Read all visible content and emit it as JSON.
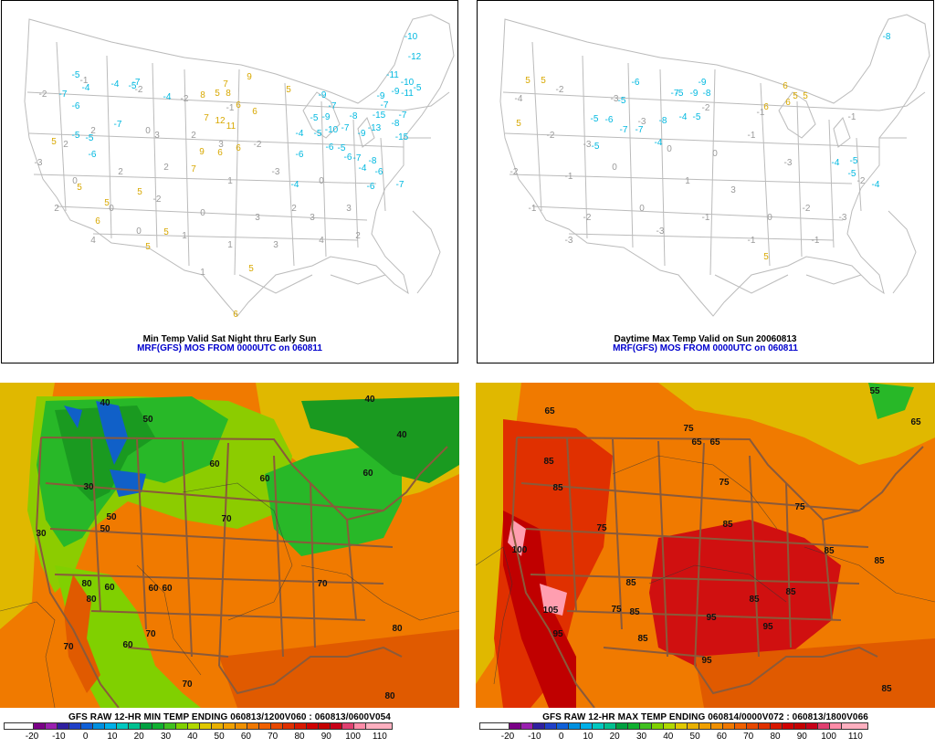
{
  "panels": {
    "min_temp": {
      "title": "Min Temp Valid Sat Night thru Early Sun",
      "subtitle": "MRF(GFS) MOS FROM 0000UTC on 060811"
    },
    "max_temp": {
      "title": "Daytime Max Temp Valid on Sun 20060813",
      "subtitle": "MRF(GFS) MOS FROM 0000UTC on 060811"
    },
    "gfs_min": {
      "title": "GFS RAW 12-HR MIN TEMP ENDING 060813/1200V060 : 060813/0600V054"
    },
    "gfs_max": {
      "title": "GFS RAW 12-HR MAX TEMP ENDING 060814/0000V072 : 060813/1800V066"
    }
  },
  "colorbar": {
    "ticks": [
      "-20",
      "-10",
      "0",
      "10",
      "20",
      "30",
      "40",
      "50",
      "60",
      "70",
      "80",
      "90",
      "100",
      "110"
    ],
    "colors": [
      "#ffffff",
      "#7a0087",
      "#6a00b0",
      "#0020c0",
      "#0060d8",
      "#00a0e0",
      "#00c0b0",
      "#00a040",
      "#20c020",
      "#80d000",
      "#e0c000",
      "#f09000",
      "#f06000",
      "#e03000",
      "#c00000",
      "#ff9eb0"
    ]
  },
  "contour_labels_min": [
    "30",
    "40",
    "40",
    "40",
    "50",
    "50",
    "60",
    "60",
    "60",
    "60",
    "60",
    "60",
    "70",
    "70",
    "70",
    "70",
    "80",
    "80",
    "80",
    "80",
    "60",
    "50",
    "30",
    "70"
  ],
  "contour_labels_max": [
    "55",
    "65",
    "65",
    "65",
    "65",
    "75",
    "75",
    "75",
    "75",
    "75",
    "85",
    "85",
    "85",
    "85",
    "85",
    "85",
    "85",
    "85",
    "95",
    "95",
    "95",
    "95",
    "100",
    "105",
    "85",
    "85",
    "85"
  ],
  "station_values_min": [
    "-5",
    "-4",
    "-7",
    "-6",
    "-4",
    "-5",
    "-7",
    "-4",
    "-7",
    "5",
    "-5",
    "-5",
    "-6",
    "8",
    "5",
    "8",
    "7",
    "6",
    "9",
    "7",
    "12",
    "11",
    "9",
    "6",
    "6",
    "6",
    "7",
    "5",
    "5",
    "6",
    "5",
    "5",
    "5",
    "5",
    "5",
    "6",
    "-10",
    "-12",
    "-7",
    "-11",
    "-10",
    "-9",
    "-5",
    "-9",
    "-5",
    "-7",
    "-9",
    "-6",
    "-5",
    "-10",
    "-7",
    "-8",
    "-13",
    "-9",
    "-15",
    "-8",
    "-15",
    "-11",
    "-9",
    "-7",
    "-5",
    "-6",
    "-7",
    "-6",
    "-8",
    "-6",
    "-7",
    "-4",
    "-4",
    "-6",
    "-4"
  ],
  "station_values_max": [
    "-8",
    "5",
    "5",
    "5",
    "-6",
    "-9",
    "-7",
    "-5",
    "-5",
    "-9",
    "-8",
    "-6",
    "-5",
    "-7",
    "-7",
    "-8",
    "-4",
    "-5",
    "-5",
    "-4",
    "6",
    "5",
    "6",
    "6",
    "5",
    "-5",
    "-4",
    "-5",
    "-4",
    "5"
  ]
}
